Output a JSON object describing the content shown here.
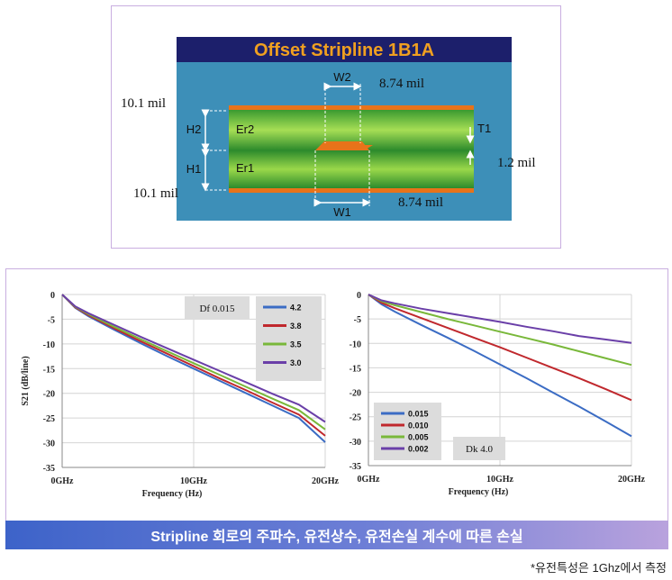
{
  "stackup": {
    "title": "Offset Stripline 1B1A",
    "labels": {
      "w2": "W2",
      "w1": "W1",
      "h2": "H2",
      "h1": "H1",
      "er2": "Er2",
      "er1": "Er1",
      "t1": "T1",
      "thick_top": "10.1 mil",
      "thick_bottom": "10.1 mil",
      "width_top": "8.74 mil",
      "width_bottom": "8.74 mil",
      "trace_thickness": "1.2 mil"
    },
    "colors": {
      "title_bar": "#1c1f6b",
      "title_text": "#f0a020",
      "background": "#3d8fb8",
      "copper": "#e8731a",
      "dielectric_edge": "#2c8a2c",
      "dielectric_center": "#9ad84a"
    }
  },
  "chart_data": [
    {
      "type": "line",
      "title": "",
      "xlabel": "Frequency (Hz)",
      "ylabel": "S21 (dB/line)",
      "x_ticks": [
        "0GHz",
        "10GHz",
        "20GHz"
      ],
      "y_ticks": [
        "0",
        "-5",
        "-10",
        "-15",
        "-20",
        "-25",
        "-30",
        "-35"
      ],
      "xlim": [
        0,
        20
      ],
      "ylim": [
        -35,
        0
      ],
      "annotation": "Df 0.015",
      "legend_position": "top-right",
      "x": [
        0,
        1,
        2,
        4,
        6,
        8,
        10,
        12,
        14,
        16,
        18,
        20
      ],
      "series": [
        {
          "name": "4.2",
          "color": "#3b6cc4",
          "values": [
            0,
            -2.7,
            -4.4,
            -7.2,
            -9.9,
            -12.5,
            -15.0,
            -17.5,
            -20.0,
            -22.5,
            -25.0,
            -29.9
          ]
        },
        {
          "name": "3.8",
          "color": "#c0282d",
          "values": [
            0,
            -2.6,
            -4.2,
            -6.9,
            -9.5,
            -12.0,
            -14.5,
            -17.0,
            -19.4,
            -21.9,
            -24.3,
            -28.6
          ]
        },
        {
          "name": "3.5",
          "color": "#79b83a",
          "values": [
            0,
            -2.5,
            -4.0,
            -6.6,
            -9.1,
            -11.5,
            -13.9,
            -16.3,
            -18.7,
            -21.1,
            -23.4,
            -27.3
          ]
        },
        {
          "name": "3.0",
          "color": "#6a3fa8",
          "values": [
            0,
            -2.4,
            -3.8,
            -6.2,
            -8.6,
            -10.9,
            -13.2,
            -15.5,
            -17.8,
            -20.1,
            -22.3,
            -25.8
          ]
        }
      ]
    },
    {
      "type": "line",
      "title": "",
      "xlabel": "Frequency (Hz)",
      "ylabel": "",
      "x_ticks": [
        "0GHz",
        "10GHz",
        "20GHz"
      ],
      "y_ticks": [
        "0",
        "-5",
        "-10",
        "-15",
        "-20",
        "-25",
        "-30",
        "-35"
      ],
      "xlim": [
        0,
        20
      ],
      "ylim": [
        -35,
        0
      ],
      "annotation": "Dk 4.0",
      "legend_position": "bottom-left",
      "x": [
        0,
        1,
        2,
        4,
        6,
        8,
        10,
        12,
        14,
        16,
        18,
        20
      ],
      "series": [
        {
          "name": "0.015",
          "color": "#3b6cc4",
          "values": [
            0,
            -2.0,
            -3.5,
            -6.2,
            -8.8,
            -11.5,
            -14.3,
            -17.1,
            -20.0,
            -22.9,
            -25.9,
            -29.0
          ]
        },
        {
          "name": "0.010",
          "color": "#c0282d",
          "values": [
            0,
            -1.7,
            -2.8,
            -4.8,
            -6.8,
            -8.8,
            -10.8,
            -12.9,
            -15.0,
            -17.1,
            -19.3,
            -21.6
          ]
        },
        {
          "name": "0.005",
          "color": "#79b83a",
          "values": [
            0,
            -1.4,
            -2.2,
            -3.6,
            -5.0,
            -6.3,
            -7.6,
            -8.9,
            -10.2,
            -11.6,
            -13.0,
            -14.4
          ]
        },
        {
          "name": "0.002",
          "color": "#6a3fa8",
          "values": [
            0,
            -1.2,
            -1.8,
            -2.9,
            -3.8,
            -4.7,
            -5.6,
            -6.6,
            -7.5,
            -8.5,
            -9.2,
            -9.9
          ]
        }
      ]
    }
  ],
  "banner": "Stripline 회로의 주파수, 유전상수, 유전손실 계수에 따른 손실",
  "footnote": "*유전특성은 1Ghz에서 측정"
}
